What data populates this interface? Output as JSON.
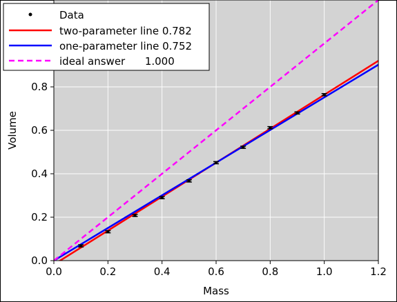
{
  "chart_data": {
    "type": "line",
    "title": "",
    "xlabel": "Mass",
    "ylabel": "Volume",
    "xlim": [
      0.0,
      1.2
    ],
    "ylim": [
      0.0,
      1.2
    ],
    "xticks": [
      "0.0",
      "0.2",
      "0.4",
      "0.6",
      "0.8",
      "1.0",
      "1.2"
    ],
    "yticks": [
      "0.0",
      "0.2",
      "0.4",
      "0.6",
      "0.8"
    ],
    "grid": true,
    "background": "#d3d3d3",
    "legend_position": "top-left",
    "legend": {
      "entries": [
        {
          "key": "data",
          "label": "Data"
        },
        {
          "key": "two",
          "label": "two-parameter line 0.782"
        },
        {
          "key": "one",
          "label": "one-parameter line 0.752"
        },
        {
          "key": "ideal",
          "label": "ideal answer      1.000"
        }
      ]
    },
    "data_points": {
      "x": [
        0.1,
        0.2,
        0.3,
        0.4,
        0.5,
        0.6,
        0.7,
        0.8,
        0.9,
        1.0
      ],
      "y": [
        0.068,
        0.133,
        0.208,
        0.29,
        0.367,
        0.451,
        0.522,
        0.612,
        0.68,
        0.764
      ],
      "yerr": [
        0.005,
        0.005,
        0.005,
        0.005,
        0.005,
        0.005,
        0.005,
        0.005,
        0.005,
        0.005
      ],
      "color": "#000000"
    },
    "series": [
      {
        "key": "two",
        "x": [
          0.0,
          1.2
        ],
        "y": [
          -0.018,
          0.92
        ],
        "color": "#ff0000",
        "style": "solid"
      },
      {
        "key": "one",
        "x": [
          0.0,
          1.2
        ],
        "y": [
          0.0,
          0.902
        ],
        "color": "#0000ff",
        "style": "solid"
      },
      {
        "key": "ideal",
        "x": [
          0.0,
          1.2
        ],
        "y": [
          0.0,
          1.2
        ],
        "color": "#ff00ff",
        "style": "dashed"
      }
    ]
  }
}
